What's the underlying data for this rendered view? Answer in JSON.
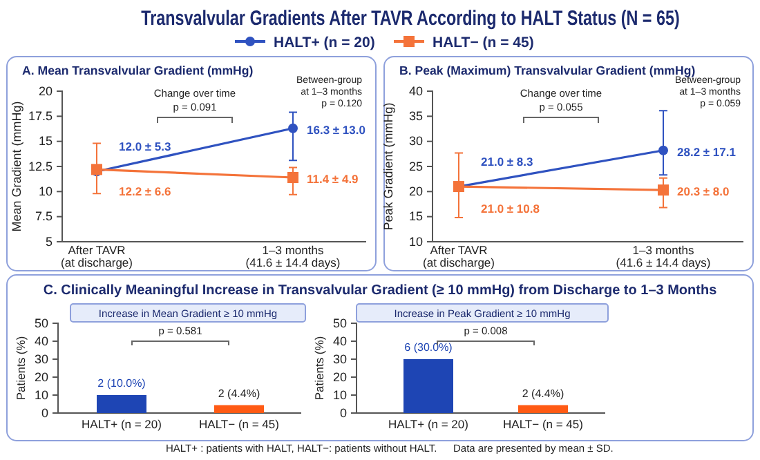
{
  "chart_data": [
    {
      "type": "other",
      "title": "Transvalvular Gradients After TAVR According to HALT Status (N = 65)",
      "annotations": [
        "HALT+ : patients with HALT, HALT−: patients without HALT.",
        "Data are presented by mean ± SD."
      ]
    },
    {
      "type": "line",
      "title": "A. Mean Transvalvular Gradient (mmHg)",
      "ylabel": "Mean Gradient (mmHg)",
      "categories": [
        "After TAVR\n(at discharge)",
        "1–3 months\n(41.6 ± 14.4 days)"
      ],
      "ylim": [
        5,
        20
      ],
      "yticks": [
        5,
        7.5,
        10,
        12.5,
        15,
        17.5,
        20
      ],
      "legend": "top",
      "line_style": "solid",
      "series": [
        {
          "name": "HALT+ (n = 20)",
          "color": "#2f52c0",
          "marker": "circle",
          "values": [
            12.0,
            16.3
          ],
          "errors": [
            null,
            [
              13.1,
              17.9
            ]
          ],
          "value_labels": [
            "12.0 ± 5.3",
            "16.3 ± 13.0"
          ]
        },
        {
          "name": "HALT− (n = 45)",
          "color": "#f4733a",
          "marker": "square",
          "values": [
            12.2,
            11.4
          ],
          "errors": [
            [
              9.8,
              14.8
            ],
            [
              9.7,
              12.4
            ]
          ],
          "value_labels": [
            "12.2 ± 6.6",
            "11.4 ± 4.9"
          ]
        }
      ],
      "annotations": [
        "Change over time\np = 0.091",
        "Between-group\nat 1–3 months\np = 0.120"
      ]
    },
    {
      "type": "line",
      "title": "B. Peak (Maximum) Transvalvular Gradient (mmHg)",
      "ylabel": "Peak Gradient (mmHg)",
      "categories": [
        "After TAVR\n(at discharge)",
        "1–3 months\n(41.6 ± 14.4 days)"
      ],
      "ylim": [
        10,
        40
      ],
      "yticks": [
        10,
        15,
        20,
        25,
        30,
        35,
        40
      ],
      "line_style": "solid",
      "series": [
        {
          "color": "#2f52c0",
          "marker": "circle",
          "values": [
            21.0,
            28.2
          ],
          "errors": [
            null,
            [
              23.3,
              36.1
            ]
          ],
          "value_labels": [
            "21.0 ± 8.3",
            "28.2 ± 17.1"
          ]
        },
        {
          "color": "#f4733a",
          "marker": "square",
          "values": [
            21.0,
            20.3
          ],
          "errors": [
            [
              14.8,
              27.7
            ],
            [
              16.8,
              22.7
            ]
          ],
          "value_labels": [
            "21.0 ± 10.8",
            "20.3 ± 8.0"
          ]
        }
      ],
      "annotations": [
        "Change over time\np = 0.055",
        "Between-group\nat 1–3 months\np = 0.059"
      ]
    },
    {
      "type": "bar",
      "subtitle": "C. Clinically Meaningful Increase in Transvalvular Gradient (≥ 10 mmHg) from Discharge to 1–3 Months",
      "title": "Increase in Mean Gradient ≥ 10 mmHg",
      "ylabel": "Patients (%)",
      "categories": [
        "HALT+ (n = 20)",
        "HALT− (n = 45)"
      ],
      "values": [
        10.0,
        4.4
      ],
      "colors": [
        "#1e45b4",
        "#ff5a14"
      ],
      "value_labels": [
        "2 (10.0%)",
        "2 (4.4%)"
      ],
      "ylim": [
        0,
        50
      ],
      "yticks": [
        0,
        10,
        20,
        30,
        40,
        50
      ],
      "annotations": [
        "p = 0.581"
      ]
    },
    {
      "type": "bar",
      "title": "Increase in Peak Gradient ≥ 10 mmHg",
      "ylabel": "Patients (%)",
      "categories": [
        "HALT+ (n = 20)",
        "HALT− (n = 45)"
      ],
      "values": [
        30.0,
        4.4
      ],
      "colors": [
        "#1e45b4",
        "#ff5a14"
      ],
      "value_labels": [
        "6 (30.0%)",
        "2 (4.4%)"
      ],
      "ylim": [
        0,
        50
      ],
      "yticks": [
        0,
        10,
        20,
        30,
        40,
        50
      ],
      "annotations": [
        "p = 0.008"
      ]
    }
  ]
}
